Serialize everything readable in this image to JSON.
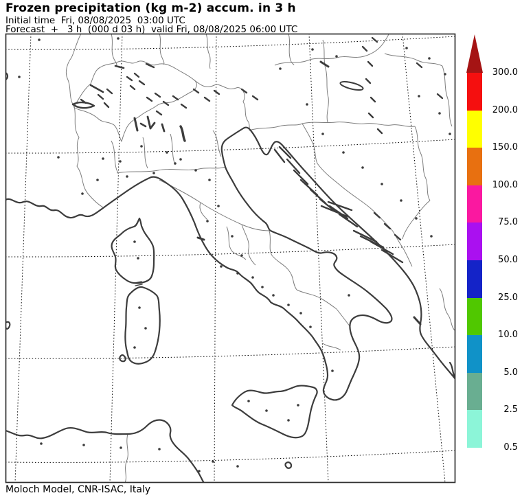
{
  "header": {
    "title": "Frozen precipitation (kg m-2) accum. in 3 h",
    "initial_time_line": "Initial time  Fri, 08/08/2025  03:00 UTC",
    "forecast_line": "Forecast  +   3 h  (000 d 03 h)  valid Fri, 08/08/2025 06:00 UTC"
  },
  "footer": {
    "credit": "Moloch Model, CNR-ISAC, Italy"
  },
  "colorbar": {
    "unit": "kg m-2",
    "arrow_color": "#a51414",
    "segments": [
      {
        "top_label": "300.0",
        "color": "#f50f0f"
      },
      {
        "top_label": "200.0",
        "color": "#ffff00"
      },
      {
        "top_label": "150.0",
        "color": "#e87010"
      },
      {
        "top_label": "100.0",
        "color": "#fa18a0"
      },
      {
        "top_label": "75.0",
        "color": "#aa10f0"
      },
      {
        "top_label": "50.0",
        "color": "#1423c8"
      },
      {
        "top_label": "25.0",
        "color": "#50c800"
      },
      {
        "top_label": "10.0",
        "color": "#1092c8"
      },
      {
        "top_label": "5.0",
        "color": "#69ae91"
      },
      {
        "top_label": "2.5",
        "color": "#8cf5d8"
      }
    ],
    "bottom_label": "0.5",
    "scale_values": [
      300.0,
      200.0,
      150.0,
      100.0,
      75.0,
      50.0,
      25.0,
      10.0,
      5.0,
      2.5,
      0.5
    ]
  },
  "map": {
    "region": "Italy and central Mediterranean",
    "frame_color": "#2e2e2e",
    "coast_color": "#3c3c3c",
    "border_color": "#7d7d7d",
    "graticule_color": "#000000"
  }
}
